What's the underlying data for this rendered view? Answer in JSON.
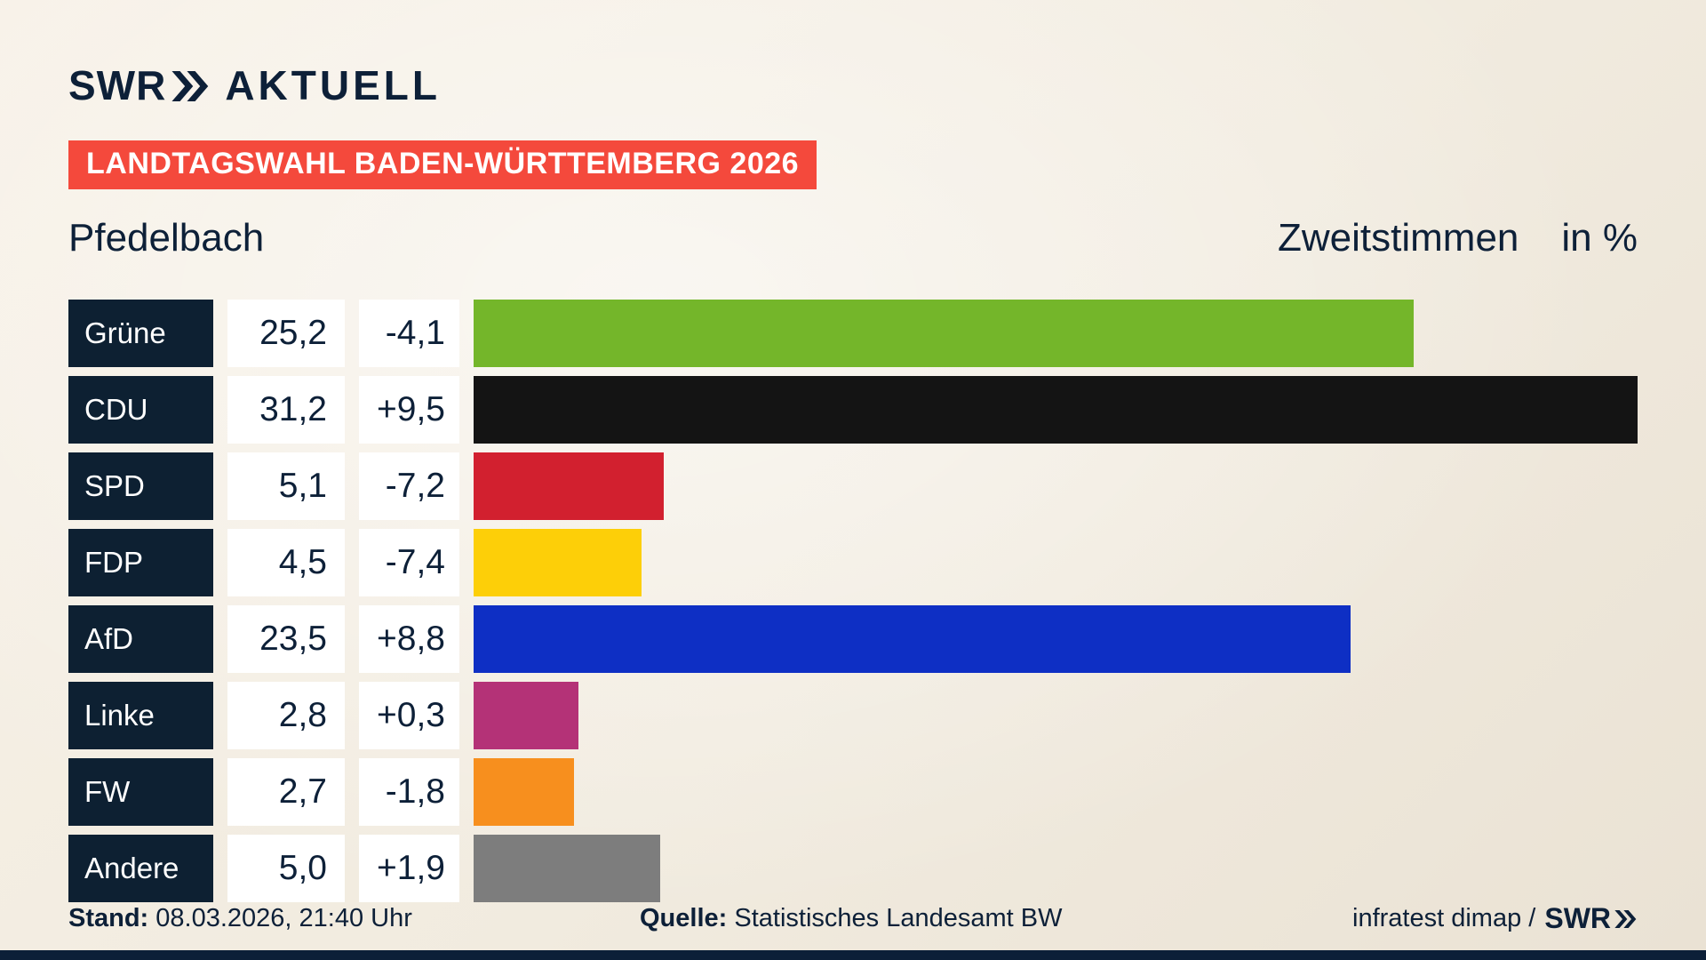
{
  "header": {
    "logo_swr": "SWR",
    "logo_aktuell": "AKTUELL",
    "badge": "LANDTAGSWAHL BADEN-WÜRTTEMBERG 2026"
  },
  "title": {
    "location": "Pfedelbach",
    "measure": "Zweitstimmen",
    "unit": "in %"
  },
  "chart_data": {
    "type": "bar",
    "orientation": "horizontal",
    "title": "Pfedelbach",
    "value_unit": "Zweitstimmen in %",
    "max_value": 31.2,
    "categories": [
      "Grüne",
      "CDU",
      "SPD",
      "FDP",
      "AfD",
      "Linke",
      "FW",
      "Andere"
    ],
    "values": [
      25.2,
      31.2,
      5.1,
      4.5,
      23.5,
      2.8,
      2.7,
      5.0
    ],
    "value_labels": [
      "25,2",
      "31,2",
      "5,1",
      "4,5",
      "23,5",
      "2,8",
      "2,7",
      "5,0"
    ],
    "change_labels": [
      "-4,1",
      "+9,5",
      "-7,2",
      "-7,4",
      "+8,8",
      "+0,3",
      "-1,8",
      "+1,9"
    ],
    "colors": [
      "#74b62a",
      "#141414",
      "#d2202f",
      "#fdcf08",
      "#0e2fc4",
      "#b43277",
      "#f78f1e",
      "#7d7d7d"
    ]
  },
  "footer": {
    "stand_label": "Stand:",
    "stand_value": "08.03.2026, 21:40 Uhr",
    "quelle_label": "Quelle:",
    "quelle_value": "Statistisches Landesamt BW",
    "credit_text": "infratest dimap /",
    "credit_logo": "SWR"
  },
  "colors": {
    "navy": "#0d2038",
    "badge_red": "#f4493c",
    "party_box": "#0d2032",
    "background": "#f1ebdf"
  }
}
